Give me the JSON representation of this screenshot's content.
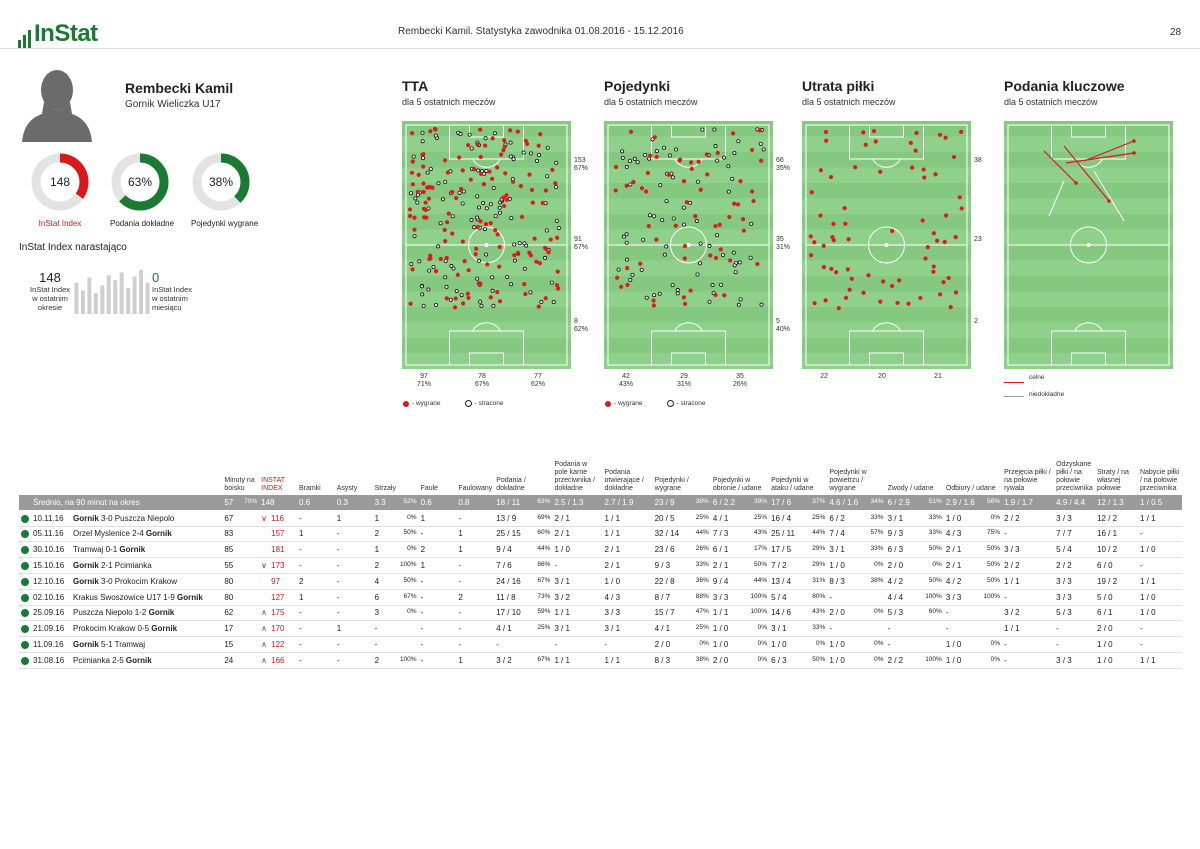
{
  "header": {
    "logo": "InStat",
    "title": "Rembecki Kamil. Statystyka zawodnika 01.08.2016 - 15.12.2016",
    "page": "28"
  },
  "player": {
    "name": "Rembecki Kamil",
    "team": "Gornik Wieliczka U17"
  },
  "donuts": [
    {
      "value": "148",
      "label": "InStat Index",
      "fraction": 0.35,
      "color": "#d7191c",
      "label_color": "#d7191c"
    },
    {
      "value": "63%",
      "label": "Podania dokładne",
      "fraction": 0.63,
      "color": "#1a7a33",
      "label_color": "#222"
    },
    {
      "value": "38%",
      "label": "Pojedynki wygrane",
      "fraction": 0.38,
      "color": "#1a7a33",
      "label_color": "#222"
    }
  ],
  "index_block": {
    "title": "InStat Index narastająco",
    "left_value": "148",
    "left_l1": "InStat Index",
    "left_l2": "w ostatnim",
    "left_l3": "okresie",
    "right_value": "0",
    "right_l1": "InStat Index",
    "right_l2": "w ostatnim",
    "right_l3": "miesiącu",
    "bars": [
      60,
      45,
      70,
      40,
      55,
      75,
      65,
      80,
      50,
      72,
      85,
      60
    ],
    "color_left": "#333",
    "color_right": "#1a7a33"
  },
  "pitches": [
    {
      "title": "TTA",
      "subtitle": "dla 5 ostatnich meczów",
      "side": [
        [
          "153",
          "67%"
        ],
        [
          "91",
          "67%"
        ],
        [
          "8",
          "62%"
        ]
      ],
      "bottom": [
        [
          "97",
          "71%"
        ],
        [
          "78",
          "67%"
        ],
        [
          "77",
          "62%"
        ]
      ],
      "legend_a": "- wygrane",
      "legend_b": "- stracone"
    },
    {
      "title": "Pojedynki",
      "subtitle": "dla 5 ostatnich meczów",
      "side": [
        [
          "66",
          "35%"
        ],
        [
          "35",
          "31%"
        ],
        [
          "5",
          "40%"
        ]
      ],
      "bottom": [
        [
          "42",
          "43%"
        ],
        [
          "29",
          "31%"
        ],
        [
          "35",
          "26%"
        ]
      ],
      "legend_a": "- wygrane",
      "legend_b": "- stracone"
    },
    {
      "title": "Utrata piłki",
      "subtitle": "dla 5 ostatnich meczów",
      "side": [
        [
          "38",
          ""
        ],
        [
          "23",
          ""
        ],
        [
          "2",
          ""
        ]
      ],
      "bottom": [
        [
          "22",
          ""
        ],
        [
          "20",
          ""
        ],
        [
          "21",
          ""
        ]
      ],
      "legend_a": "",
      "legend_b": ""
    },
    {
      "title": "Podania kluczowe",
      "subtitle": "dla 5 ostatnich meczów",
      "side": [],
      "bottom": [],
      "legend_a": "celne",
      "legend_b": "niedokładne"
    }
  ],
  "table": {
    "headers": [
      "",
      "Minuty na boisku",
      "INSTAT INDEX",
      "Bramki",
      "Asysty",
      "Strzały",
      "Faule",
      "Faulowany",
      "Podania / dokładne",
      "Podania w pole karne przeciwnika / dokładne",
      "Podania otwierające / dokładne",
      "Pojedynki / wygrane",
      "Pojedynki w obronie / udane",
      "Pojedynki w ataku / udane",
      "Pojedynki w powietrzu / wygrane",
      "Zwody / udane",
      "Odbiory / udane",
      "Przejęcia piłki / na połowie rywala",
      "Odzyskane piłki / na połowie przeciwnika",
      "Straty / na własnej połowie",
      "Nabycie piłki / na połowie przeciwnika"
    ],
    "avg": {
      "label": "Średnio, na 90 minut na okres",
      "cells": [
        [
          "57",
          "70%"
        ],
        [
          "148",
          ""
        ],
        [
          "0.6",
          ""
        ],
        [
          "0.3",
          ""
        ],
        [
          "3.3",
          "52%"
        ],
        [
          "0.6",
          ""
        ],
        [
          "0.8",
          ""
        ],
        [
          "18 / 11",
          "63%"
        ],
        [
          "2.5 / 1.3",
          ""
        ],
        [
          "2.7 / 1.9",
          ""
        ],
        [
          "23 / 9",
          "38%"
        ],
        [
          "6 / 2.2",
          "39%"
        ],
        [
          "17 / 6",
          "37%"
        ],
        [
          "4.6 / 1.6",
          "34%"
        ],
        [
          "6 / 2.9",
          "51%"
        ],
        [
          "2.9 / 1.6",
          "56%"
        ],
        [
          "1.9 / 1.7",
          ""
        ],
        [
          "4.9 / 4.4",
          ""
        ],
        [
          "12 / 1.3",
          ""
        ],
        [
          "1 / 0.5",
          ""
        ]
      ]
    },
    "rows": [
      {
        "date": "10.11.16",
        "pre": "",
        "bold": "Gornik",
        "post": " 3-0 Puszcza Niepolo",
        "trend": "down",
        "cells": [
          [
            "67",
            ""
          ],
          [
            "116",
            ""
          ],
          [
            "-",
            ""
          ],
          [
            "1",
            ""
          ],
          [
            "1",
            "0%"
          ],
          [
            "1",
            ""
          ],
          [
            "-",
            ""
          ],
          [
            "13 / 9",
            "69%"
          ],
          [
            "2 / 1",
            ""
          ],
          [
            "1 / 1",
            ""
          ],
          [
            "20 / 5",
            "25%"
          ],
          [
            "4 / 1",
            "25%"
          ],
          [
            "16 / 4",
            "25%"
          ],
          [
            "6 / 2",
            "33%"
          ],
          [
            "3 / 1",
            "33%"
          ],
          [
            "1 / 0",
            "0%"
          ],
          [
            "2 / 2",
            ""
          ],
          [
            "3 / 3",
            ""
          ],
          [
            "12 / 2",
            ""
          ],
          [
            "1 / 1",
            ""
          ]
        ]
      },
      {
        "date": "05.11.16",
        "pre": "Orzel Myslenice 2-4 ",
        "bold": "Gornik",
        "post": "",
        "trend": "",
        "cells": [
          [
            "83",
            ""
          ],
          [
            "157",
            ""
          ],
          [
            "1",
            ""
          ],
          [
            "-",
            ""
          ],
          [
            "2",
            "50%"
          ],
          [
            "-",
            ""
          ],
          [
            "1",
            ""
          ],
          [
            "25 / 15",
            "60%"
          ],
          [
            "2 / 1",
            ""
          ],
          [
            "1 / 1",
            ""
          ],
          [
            "32 / 14",
            "44%"
          ],
          [
            "7 / 3",
            "43%"
          ],
          [
            "25 / 11",
            "44%"
          ],
          [
            "7 / 4",
            "57%"
          ],
          [
            "9 / 3",
            "33%"
          ],
          [
            "4 / 3",
            "75%"
          ],
          [
            "-",
            ""
          ],
          [
            "7 / 7",
            ""
          ],
          [
            "16 / 1",
            ""
          ],
          [
            "-",
            ""
          ]
        ]
      },
      {
        "date": "30.10.16",
        "pre": "Tramwaj 0-1 ",
        "bold": "Gornik",
        "post": "",
        "trend": "",
        "cells": [
          [
            "85",
            ""
          ],
          [
            "181",
            ""
          ],
          [
            "-",
            ""
          ],
          [
            "-",
            ""
          ],
          [
            "1",
            "0%"
          ],
          [
            "2",
            ""
          ],
          [
            "1",
            ""
          ],
          [
            "9 / 4",
            "44%"
          ],
          [
            "1 / 0",
            ""
          ],
          [
            "2 / 1",
            ""
          ],
          [
            "23 / 6",
            "26%"
          ],
          [
            "6 / 1",
            "17%"
          ],
          [
            "17 / 5",
            "29%"
          ],
          [
            "3 / 1",
            "33%"
          ],
          [
            "6 / 3",
            "50%"
          ],
          [
            "2 / 1",
            "50%"
          ],
          [
            "3 / 3",
            ""
          ],
          [
            "5 / 4",
            ""
          ],
          [
            "10 / 2",
            ""
          ],
          [
            "1 / 0",
            ""
          ]
        ]
      },
      {
        "date": "15.10.16",
        "pre": "",
        "bold": "Gornik",
        "post": " 2-1 Pcimianka",
        "trend": "down",
        "cells": [
          [
            "55",
            ""
          ],
          [
            "173",
            ""
          ],
          [
            "-",
            ""
          ],
          [
            "-",
            ""
          ],
          [
            "2",
            "100%"
          ],
          [
            "1",
            ""
          ],
          [
            "-",
            ""
          ],
          [
            "7 / 6",
            "86%"
          ],
          [
            "-",
            ""
          ],
          [
            "2 / 1",
            ""
          ],
          [
            "9 / 3",
            "33%"
          ],
          [
            "2 / 1",
            "50%"
          ],
          [
            "7 / 2",
            "29%"
          ],
          [
            "1 / 0",
            "0%"
          ],
          [
            "2 / 0",
            "0%"
          ],
          [
            "2 / 1",
            "50%"
          ],
          [
            "2 / 2",
            ""
          ],
          [
            "2 / 2",
            ""
          ],
          [
            "6 / 0",
            ""
          ],
          [
            "-",
            ""
          ]
        ]
      },
      {
        "date": "12.10.16",
        "pre": "",
        "bold": "Gornik",
        "post": " 3-0 Prokocim Krakow",
        "trend": "",
        "cells": [
          [
            "80",
            ""
          ],
          [
            "97",
            ""
          ],
          [
            "2",
            ""
          ],
          [
            "-",
            ""
          ],
          [
            "4",
            "50%"
          ],
          [
            "-",
            ""
          ],
          [
            "-",
            ""
          ],
          [
            "24 / 16",
            "67%"
          ],
          [
            "3 / 1",
            ""
          ],
          [
            "1 / 0",
            ""
          ],
          [
            "22 / 8",
            "36%"
          ],
          [
            "9 / 4",
            "44%"
          ],
          [
            "13 / 4",
            "31%"
          ],
          [
            "8 / 3",
            "38%"
          ],
          [
            "4 / 2",
            "50%"
          ],
          [
            "4 / 2",
            "50%"
          ],
          [
            "1 / 1",
            ""
          ],
          [
            "3 / 3",
            ""
          ],
          [
            "19 / 2",
            ""
          ],
          [
            "1 / 1",
            ""
          ]
        ]
      },
      {
        "date": "02.10.16",
        "pre": "Krakus Swoszowice U17 1-9 ",
        "bold": "Gornik",
        "post": "",
        "trend": "",
        "cells": [
          [
            "80",
            ""
          ],
          [
            "127",
            ""
          ],
          [
            "1",
            ""
          ],
          [
            "-",
            ""
          ],
          [
            "6",
            "67%"
          ],
          [
            "-",
            ""
          ],
          [
            "2",
            ""
          ],
          [
            "11 / 8",
            "73%"
          ],
          [
            "3 / 2",
            ""
          ],
          [
            "4 / 3",
            ""
          ],
          [
            "8 / 7",
            "88%"
          ],
          [
            "3 / 3",
            "100%"
          ],
          [
            "5 / 4",
            "80%"
          ],
          [
            "-",
            ""
          ],
          [
            "4 / 4",
            "100%"
          ],
          [
            "3 / 3",
            "100%"
          ],
          [
            "-",
            ""
          ],
          [
            "3 / 3",
            ""
          ],
          [
            "5 / 0",
            ""
          ],
          [
            "1 / 0",
            ""
          ]
        ]
      },
      {
        "date": "25.09.16",
        "pre": "Puszcza Niepolo 1-2 ",
        "bold": "Gornik",
        "post": "",
        "trend": "up",
        "cells": [
          [
            "62",
            ""
          ],
          [
            "175",
            ""
          ],
          [
            "-",
            ""
          ],
          [
            "-",
            ""
          ],
          [
            "3",
            "0%"
          ],
          [
            "-",
            ""
          ],
          [
            "-",
            ""
          ],
          [
            "17 / 10",
            "59%"
          ],
          [
            "1 / 1",
            ""
          ],
          [
            "3 / 3",
            ""
          ],
          [
            "15 / 7",
            "47%"
          ],
          [
            "1 / 1",
            "100%"
          ],
          [
            "14 / 6",
            "43%"
          ],
          [
            "2 / 0",
            "0%"
          ],
          [
            "5 / 3",
            "60%"
          ],
          [
            "-",
            ""
          ],
          [
            "3 / 2",
            ""
          ],
          [
            "5 / 3",
            ""
          ],
          [
            "6 / 1",
            ""
          ],
          [
            "1 / 0",
            ""
          ]
        ]
      },
      {
        "date": "21.09.16",
        "pre": "Prokocim Krakow 0-5 ",
        "bold": "Gornik",
        "post": "",
        "trend": "up",
        "cells": [
          [
            "17",
            ""
          ],
          [
            "170",
            ""
          ],
          [
            "-",
            ""
          ],
          [
            "1",
            ""
          ],
          [
            "-",
            ""
          ],
          [
            "-",
            ""
          ],
          [
            "-",
            ""
          ],
          [
            "4 / 1",
            "25%"
          ],
          [
            "3 / 1",
            ""
          ],
          [
            "3 / 1",
            ""
          ],
          [
            "4 / 1",
            "25%"
          ],
          [
            "1 / 0",
            "0%"
          ],
          [
            "3 / 1",
            "33%"
          ],
          [
            "-",
            ""
          ],
          [
            "-",
            ""
          ],
          [
            "-",
            ""
          ],
          [
            "1 / 1",
            ""
          ],
          [
            "-",
            ""
          ],
          [
            "2 / 0",
            ""
          ],
          [
            "-",
            ""
          ]
        ]
      },
      {
        "date": "11.09.16",
        "pre": "",
        "bold": "Gornik",
        "post": " 5-1 Tramwaj",
        "trend": "up",
        "cells": [
          [
            "15",
            ""
          ],
          [
            "122",
            ""
          ],
          [
            "-",
            ""
          ],
          [
            "-",
            ""
          ],
          [
            "-",
            ""
          ],
          [
            "-",
            ""
          ],
          [
            "-",
            ""
          ],
          [
            "-",
            ""
          ],
          [
            "-",
            ""
          ],
          [
            "-",
            ""
          ],
          [
            "2 / 0",
            "0%"
          ],
          [
            "1 / 0",
            "0%"
          ],
          [
            "1 / 0",
            "0%"
          ],
          [
            "1 / 0",
            "0%"
          ],
          [
            "-",
            ""
          ],
          [
            "1 / 0",
            "0%"
          ],
          [
            "-",
            ""
          ],
          [
            "-",
            ""
          ],
          [
            "1 / 0",
            ""
          ],
          [
            "-",
            ""
          ]
        ]
      },
      {
        "date": "31.08.16",
        "pre": "Pcimianka 2-5 ",
        "bold": "Gornik",
        "post": "",
        "trend": "up",
        "cells": [
          [
            "24",
            ""
          ],
          [
            "166",
            ""
          ],
          [
            "-",
            ""
          ],
          [
            "-",
            ""
          ],
          [
            "2",
            "100%"
          ],
          [
            "-",
            ""
          ],
          [
            "1",
            ""
          ],
          [
            "3 / 2",
            "67%"
          ],
          [
            "1 / 1",
            ""
          ],
          [
            "1 / 1",
            ""
          ],
          [
            "8 / 3",
            "38%"
          ],
          [
            "2 / 0",
            "0%"
          ],
          [
            "6 / 3",
            "50%"
          ],
          [
            "1 / 0",
            "0%"
          ],
          [
            "2 / 2",
            "100%"
          ],
          [
            "1 / 0",
            "0%"
          ],
          [
            "-",
            ""
          ],
          [
            "3 / 3",
            ""
          ],
          [
            "1 / 0",
            ""
          ],
          [
            "1 / 1",
            ""
          ]
        ]
      }
    ]
  }
}
